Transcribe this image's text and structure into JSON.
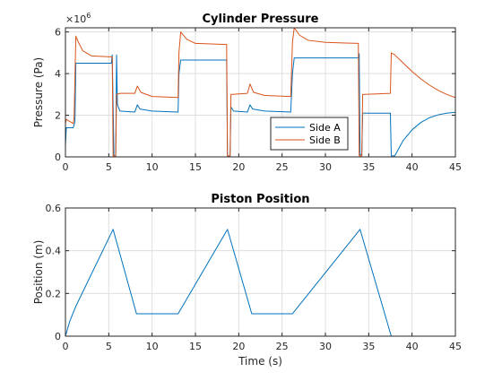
{
  "chart_data": [
    {
      "type": "line",
      "title": "Cylinder Pressure",
      "xlabel": "",
      "ylabel": "Pressure (Pa)",
      "xlim": [
        0,
        45
      ],
      "ylim": [
        0,
        6.2
      ],
      "y_multiplier": "×10",
      "y_multiplier_exponent": "6",
      "xticks": [
        0,
        5,
        10,
        15,
        20,
        25,
        30,
        35,
        40,
        45
      ],
      "yticks": [
        0,
        2,
        4,
        6
      ],
      "grid": true,
      "legend": "bottom-right",
      "series": [
        {
          "name": "Side A",
          "color": "#0072BD",
          "points": [
            [
              0,
              0.5
            ],
            [
              0.1,
              1.4
            ],
            [
              0.5,
              1.4
            ],
            [
              0.9,
              1.4
            ],
            [
              1.1,
              1.7
            ],
            [
              1.2,
              4.5
            ],
            [
              3.0,
              4.5
            ],
            [
              5.3,
              4.5
            ],
            [
              5.4,
              4.9
            ],
            [
              5.6,
              0.05
            ],
            [
              5.8,
              0.05
            ],
            [
              5.9,
              4.9
            ],
            [
              6.0,
              2.5
            ],
            [
              6.3,
              2.2
            ],
            [
              8.0,
              2.15
            ],
            [
              8.3,
              2.5
            ],
            [
              8.6,
              2.3
            ],
            [
              10.0,
              2.2
            ],
            [
              13.0,
              2.15
            ],
            [
              13.1,
              4.0
            ],
            [
              13.3,
              4.65
            ],
            [
              16.0,
              4.65
            ],
            [
              18.6,
              4.65
            ],
            [
              18.7,
              0.05
            ],
            [
              19.0,
              0.05
            ],
            [
              19.1,
              2.4
            ],
            [
              19.4,
              2.2
            ],
            [
              21.0,
              2.15
            ],
            [
              21.3,
              2.5
            ],
            [
              21.6,
              2.3
            ],
            [
              23.0,
              2.2
            ],
            [
              26.0,
              2.15
            ],
            [
              26.2,
              4.0
            ],
            [
              26.4,
              4.75
            ],
            [
              30.0,
              4.75
            ],
            [
              33.8,
              4.75
            ],
            [
              33.9,
              4.95
            ],
            [
              34.0,
              0.1
            ],
            [
              34.2,
              0.1
            ],
            [
              34.3,
              2.1
            ],
            [
              37.5,
              2.1
            ],
            [
              37.6,
              0.05
            ],
            [
              38.0,
              0.05
            ],
            [
              39.0,
              0.8
            ],
            [
              40.0,
              1.3
            ],
            [
              41.0,
              1.65
            ],
            [
              42.0,
              1.88
            ],
            [
              43.0,
              2.02
            ],
            [
              44.0,
              2.1
            ],
            [
              45.0,
              2.14
            ]
          ]
        },
        {
          "name": "Side B",
          "color": "#D95319",
          "points": [
            [
              0,
              1.6
            ],
            [
              0.1,
              1.8
            ],
            [
              0.9,
              1.6
            ],
            [
              1.0,
              1.9
            ],
            [
              1.2,
              5.8
            ],
            [
              1.5,
              5.5
            ],
            [
              2.0,
              5.1
            ],
            [
              3.0,
              4.85
            ],
            [
              5.4,
              4.8
            ],
            [
              5.5,
              0.05
            ],
            [
              5.8,
              0.05
            ],
            [
              5.9,
              3.0
            ],
            [
              6.3,
              3.05
            ],
            [
              8.0,
              3.05
            ],
            [
              8.3,
              3.4
            ],
            [
              8.7,
              3.1
            ],
            [
              10.0,
              2.9
            ],
            [
              13.0,
              2.85
            ],
            [
              13.1,
              5.0
            ],
            [
              13.3,
              6.0
            ],
            [
              14.0,
              5.65
            ],
            [
              15.0,
              5.45
            ],
            [
              18.6,
              5.4
            ],
            [
              18.7,
              0.05
            ],
            [
              19.0,
              0.05
            ],
            [
              19.1,
              3.0
            ],
            [
              21.0,
              3.05
            ],
            [
              21.3,
              3.5
            ],
            [
              21.7,
              3.1
            ],
            [
              23.0,
              2.95
            ],
            [
              26.0,
              2.9
            ],
            [
              26.2,
              5.5
            ],
            [
              26.4,
              6.2
            ],
            [
              27.0,
              5.85
            ],
            [
              28.0,
              5.6
            ],
            [
              30.0,
              5.5
            ],
            [
              33.8,
              5.45
            ],
            [
              33.9,
              0.05
            ],
            [
              34.2,
              0.05
            ],
            [
              34.3,
              3.0
            ],
            [
              37.5,
              3.05
            ],
            [
              37.6,
              5.0
            ],
            [
              38.0,
              4.9
            ],
            [
              39.0,
              4.5
            ],
            [
              40.0,
              4.1
            ],
            [
              41.0,
              3.75
            ],
            [
              42.0,
              3.45
            ],
            [
              43.0,
              3.2
            ],
            [
              44.0,
              3.0
            ],
            [
              45.0,
              2.85
            ]
          ]
        }
      ]
    },
    {
      "type": "line",
      "title": "Piston Position",
      "xlabel": "Time (s)",
      "ylabel": "Position (m)",
      "xlim": [
        0,
        45
      ],
      "ylim": [
        0,
        0.6
      ],
      "xticks": [
        0,
        5,
        10,
        15,
        20,
        25,
        30,
        35,
        40,
        45
      ],
      "yticks": [
        0,
        0.2,
        0.4,
        0.6
      ],
      "grid": true,
      "series": [
        {
          "color": "#0072BD",
          "points": [
            [
              0,
              0
            ],
            [
              0.5,
              0.07
            ],
            [
              1.2,
              0.14
            ],
            [
              5.5,
              0.5
            ],
            [
              8.2,
              0.105
            ],
            [
              13.0,
              0.105
            ],
            [
              18.7,
              0.5
            ],
            [
              21.5,
              0.105
            ],
            [
              26.2,
              0.105
            ],
            [
              34.0,
              0.5
            ],
            [
              37.6,
              0.0
            ],
            [
              45.0,
              0.0
            ]
          ]
        }
      ]
    }
  ]
}
